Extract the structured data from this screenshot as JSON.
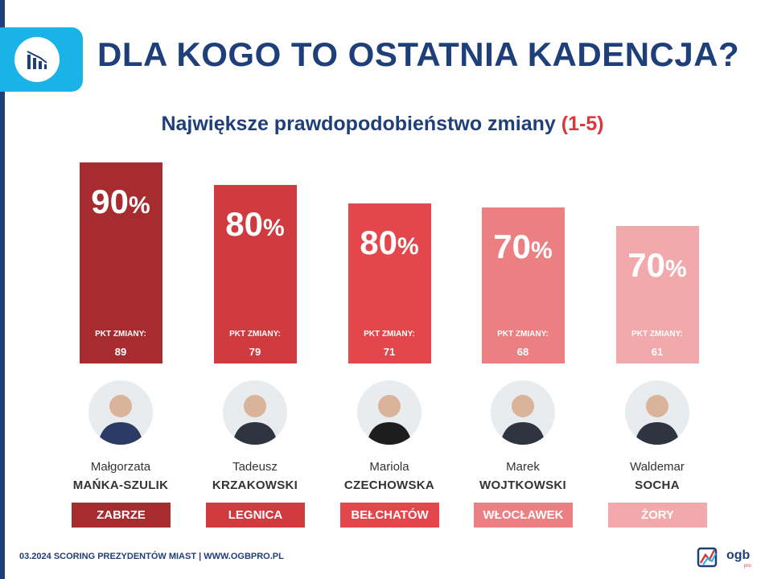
{
  "header": {
    "title": "DLA KOGO TO OSTATNIA KADENCJA?",
    "subtitle": "Największe prawdopodobieństwo zmiany",
    "subtitle_range": "(1-5)",
    "icon": "bar-chart-down-icon"
  },
  "chart_data": {
    "type": "bar",
    "title": "Największe prawdopodobieństwo zmiany (1-5)",
    "unit": "%",
    "ylim": [
      0,
      100
    ],
    "categories": [
      "ZABRZE",
      "LEGNICA",
      "BEŁCHATÓW",
      "WŁOCŁAWEK",
      "ŻORY"
    ],
    "values": [
      90,
      80,
      80,
      70,
      70
    ],
    "value_labels": [
      "90",
      "80",
      "80",
      "70",
      "70"
    ],
    "pkt_label": "PKT ZMIANY:",
    "pkt_values": [
      "89",
      "79",
      "71",
      "68",
      "61"
    ],
    "colors": [
      "#a72c30",
      "#cf3b3f",
      "#e3474b",
      "#eb7f82",
      "#f2a9ab"
    ]
  },
  "candidates": [
    {
      "first_name": "Małgorzata",
      "last_name": "MAŃKA-SZULIK",
      "city": "ZABRZE"
    },
    {
      "first_name": "Tadeusz",
      "last_name": "KRZAKOWSKI",
      "city": "LEGNICA"
    },
    {
      "first_name": "Mariola",
      "last_name": "CZECHOWSKA",
      "city": "BEŁCHATÓW"
    },
    {
      "first_name": "Marek",
      "last_name": "WOJTKOWSKI",
      "city": "WŁOCŁAWEK"
    },
    {
      "first_name": "Waldemar",
      "last_name": "SOCHA",
      "city": "ŻORY"
    }
  ],
  "footer": {
    "text": "03.2024 SCORING PREZYDENTÓW MIAST | WWW.OGBPRO.PL",
    "brand": "ogb",
    "brand_sub": "pro"
  }
}
